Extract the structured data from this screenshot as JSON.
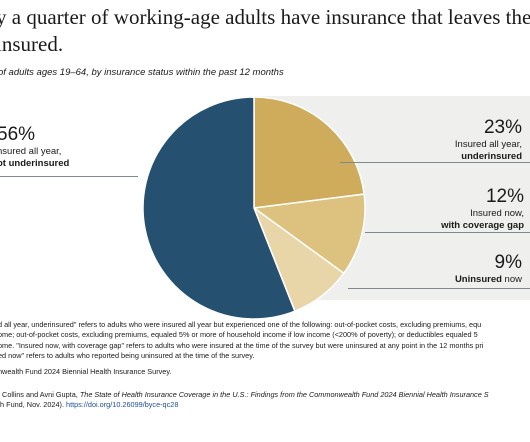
{
  "title_line1": "y a quarter of working-age adults have insurance that leaves them",
  "title_line2": "insured.",
  "subtitle": "of adults ages 19–64, by insurance status within the past 12 months",
  "chart_data": {
    "type": "pie",
    "colors": {
      "insured_all_year": "#26506f",
      "underinsured": "#cfab5c",
      "coverage_gap": "#dcc27e",
      "uninsured": "#e8d6a8"
    },
    "slices": [
      {
        "key": "underinsured",
        "value": 23,
        "pct_label": "23%",
        "line1": "Insured all year,",
        "line2": "underinsured"
      },
      {
        "key": "coverage_gap",
        "value": 12,
        "pct_label": "12%",
        "line1": "Insured now,",
        "line2": "with coverage gap"
      },
      {
        "key": "uninsured",
        "value": 9,
        "pct_label": "9%",
        "line1": "",
        "line2": "Uninsured",
        "line2_suffix": " now"
      },
      {
        "key": "insured_all_year",
        "value": 56,
        "pct_label": "56%",
        "line1": "nsured all year,",
        "line2": "ot underinsured"
      }
    ]
  },
  "notes": [
    "d all year, underinsured\" refers to adults who were insured all year but experienced one of the following: out-of-pocket costs, excluding premiums, equ",
    "ome; out-of-pocket costs, excluding premiums, equaled 5% or more of household income if low income (<200% of poverty); or deductibles equaled 5",
    "ome. \"Insured now, with coverage gap\" refers to adults who were insured at the time of the survey but were uninsured at any point in the 12 months pri",
    "ed now\" refers to adults who reported being uninsured at the time of the survey."
  ],
  "source": "nwealth Fund 2024 Biennial Health Insurance Survey.",
  "citation_line1_prefix": ". Collins and Avni Gupta, ",
  "citation_line1_italic": "The State of Health Insurance Coverage in the U.S.: Findings from the Commonwealth Fund 2024 Biennial Health Insurance S",
  "citation_line2_prefix": "th Fund, Nov. 2024). ",
  "citation_link": "https://doi.org/10.26099/byce-qc28"
}
